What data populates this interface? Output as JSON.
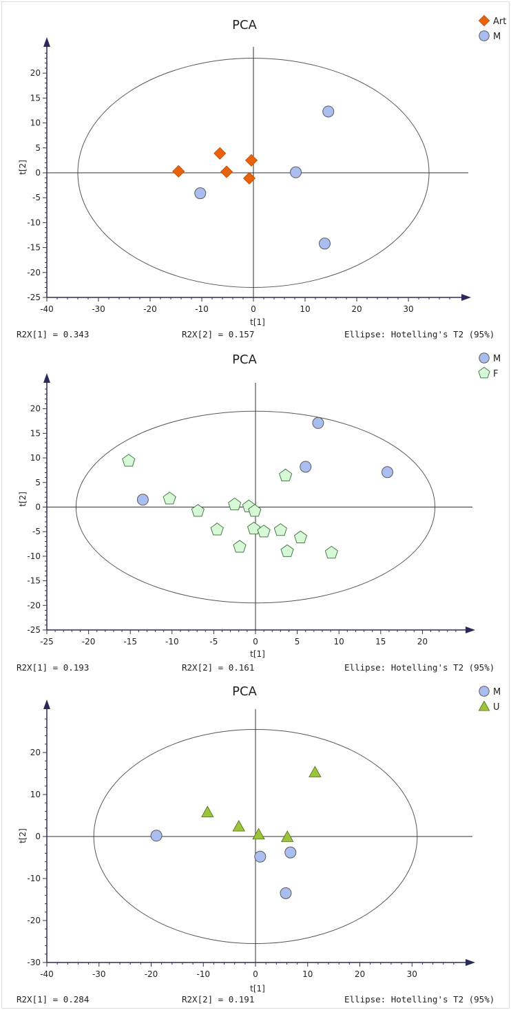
{
  "chart_data": [
    {
      "type": "scatter",
      "title": "PCA",
      "xlabel": "t[1]",
      "ylabel": "t[2]",
      "xlim": [
        -40,
        40
      ],
      "ylim": [
        -25,
        25
      ],
      "xticks": [
        -40,
        -30,
        -20,
        -10,
        0,
        10,
        20,
        30
      ],
      "yticks": [
        -25,
        -20,
        -15,
        -10,
        -5,
        0,
        5,
        10,
        15,
        20
      ],
      "legend_position": "top-right",
      "ellipse": {
        "rx": 34,
        "ry": 23,
        "label": "Hotelling's T2 (95%)"
      },
      "series": [
        {
          "name": "Art",
          "marker": "diamond",
          "color": "#e8620c",
          "points": [
            [
              -14.5,
              0.3
            ],
            [
              -6.5,
              3.9
            ],
            [
              -5.2,
              0.2
            ],
            [
              -0.4,
              2.5
            ],
            [
              -0.8,
              -1.1
            ]
          ]
        },
        {
          "name": "M",
          "marker": "circle",
          "color": "#a9bdf0",
          "points": [
            [
              14.5,
              12.3
            ],
            [
              8.2,
              0.1
            ],
            [
              -10.3,
              -4.1
            ],
            [
              13.8,
              -14.2
            ]
          ]
        }
      ],
      "footer": {
        "r2x1": "R2X[1] = 0.343",
        "r2x2": "R2X[2] = 0.157",
        "ellipse_note": "Ellipse: Hotelling's T2 (95%)"
      }
    },
    {
      "type": "scatter",
      "title": "PCA",
      "xlabel": "t[1]",
      "ylabel": "t[2]",
      "xlim": [
        -25,
        25
      ],
      "ylim": [
        -25,
        25
      ],
      "xticks": [
        -25,
        -20,
        -15,
        -10,
        -5,
        0,
        5,
        10,
        15,
        20
      ],
      "yticks": [
        -25,
        -20,
        -15,
        -10,
        -5,
        0,
        5,
        10,
        15,
        20
      ],
      "legend_position": "top-right",
      "ellipse": {
        "rx": 21.5,
        "ry": 19.5,
        "label": "Hotelling's T2 (95%)"
      },
      "series": [
        {
          "name": "M",
          "marker": "circle",
          "color": "#a9bdf0",
          "points": [
            [
              7.5,
              17.1
            ],
            [
              6.0,
              8.2
            ],
            [
              15.8,
              7.1
            ],
            [
              -13.5,
              1.5
            ]
          ]
        },
        {
          "name": "F",
          "marker": "pentagon",
          "color": "#d6f8d6",
          "points": [
            [
              -15.2,
              9.4
            ],
            [
              -10.3,
              1.7
            ],
            [
              -6.9,
              -0.8
            ],
            [
              -2.5,
              0.5
            ],
            [
              -0.8,
              0.1
            ],
            [
              -0.1,
              -0.8
            ],
            [
              -4.6,
              -4.6
            ],
            [
              -0.2,
              -4.4
            ],
            [
              1.0,
              -5.0
            ],
            [
              3.0,
              -4.7
            ],
            [
              3.6,
              6.4
            ],
            [
              5.4,
              -6.2
            ],
            [
              3.8,
              -9.0
            ],
            [
              -1.9,
              -8.1
            ],
            [
              9.1,
              -9.3
            ]
          ]
        }
      ],
      "footer": {
        "r2x1": "R2X[1] = 0.193",
        "r2x2": "R2X[2] = 0.161",
        "ellipse_note": "Ellipse: Hotelling's T2 (95%)"
      }
    },
    {
      "type": "scatter",
      "title": "PCA",
      "xlabel": "t[1]",
      "ylabel": "t[2]",
      "xlim": [
        -40,
        40
      ],
      "ylim": [
        -30,
        30
      ],
      "xticks": [
        -40,
        -30,
        -20,
        -10,
        0,
        10,
        20,
        30
      ],
      "yticks": [
        -30,
        -20,
        -10,
        0,
        10,
        20
      ],
      "legend_position": "top-right",
      "ellipse": {
        "rx": 31,
        "ry": 25.5,
        "label": "Hotelling's T2 (95%)"
      },
      "series": [
        {
          "name": "M",
          "marker": "circle",
          "color": "#a9bdf0",
          "points": [
            [
              -19.0,
              0.2
            ],
            [
              0.9,
              -4.8
            ],
            [
              6.7,
              -3.8
            ],
            [
              5.8,
              -13.5
            ]
          ]
        },
        {
          "name": "U",
          "marker": "triangle",
          "color": "#9bc43a",
          "points": [
            [
              -9.2,
              5.8
            ],
            [
              -3.2,
              2.4
            ],
            [
              0.6,
              0.5
            ],
            [
              6.1,
              -0.1
            ],
            [
              11.4,
              15.3
            ]
          ]
        }
      ],
      "footer": {
        "r2x1": "R2X[1] = 0.284",
        "r2x2": "R2X[2] = 0.191",
        "ellipse_note": "Ellipse: Hotelling's T2 (95%)"
      }
    }
  ]
}
